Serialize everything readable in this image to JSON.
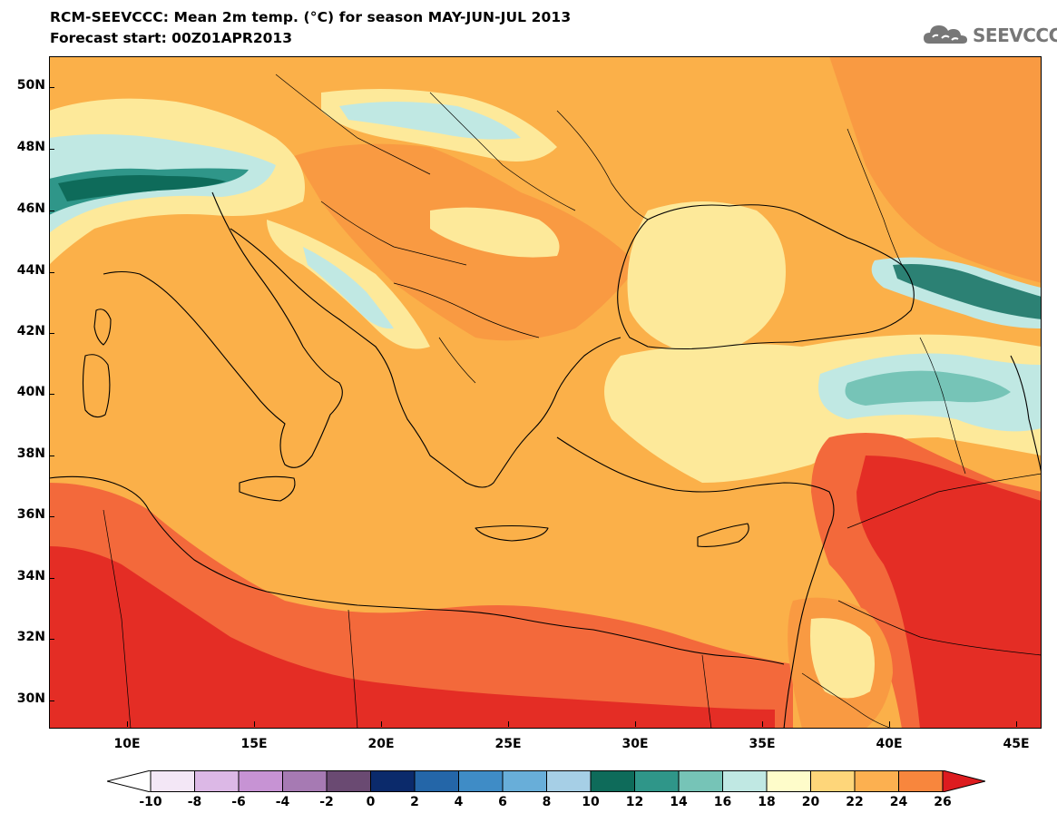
{
  "header": {
    "title": "RCM-SEEVCCC: Mean 2m temp. (°C) for season MAY-JUN-JUL 2013",
    "subtitle": "Forecast start: 00Z01APR2013",
    "logo_text": "SEEVCCC"
  },
  "map": {
    "lat_labels": [
      "50N",
      "48N",
      "46N",
      "44N",
      "42N",
      "40N",
      "38N",
      "36N",
      "34N",
      "32N",
      "30N"
    ],
    "lon_labels": [
      "10E",
      "15E",
      "20E",
      "25E",
      "30E",
      "35E",
      "40E",
      "45E"
    ],
    "background_color": "#fbb049",
    "regions": {
      "north_warm_band": "#f99a42",
      "cool_areas": "#fde99a",
      "cold_mountains": "#b7e2dd",
      "alps_core": "#3b9b8f",
      "caucasus_core": "#2c8174",
      "hot_south": "#e42d25",
      "hot_orange": "#f3693b"
    }
  },
  "colorbar": {
    "labels": [
      "-10",
      "-8",
      "-6",
      "-4",
      "-2",
      "0",
      "2",
      "4",
      "6",
      "8",
      "10",
      "12",
      "14",
      "16",
      "18",
      "20",
      "22",
      "24",
      "26"
    ],
    "colors": [
      "#f3e7f6",
      "#dcb8e6",
      "#c793d4",
      "#a67ab3",
      "#6a4a72",
      "#0b2a6b",
      "#2466a8",
      "#3f8cc6",
      "#68aed9",
      "#a6cfe6",
      "#0e6b5a",
      "#2f9689",
      "#76c4b7",
      "#c0e8e3",
      "#fefcca",
      "#fed67a",
      "#fcb050",
      "#f8863d",
      "#f04e29",
      "#dd1c1f"
    ],
    "under_color": "#ffffff",
    "over_color": "#dd1c1f"
  }
}
